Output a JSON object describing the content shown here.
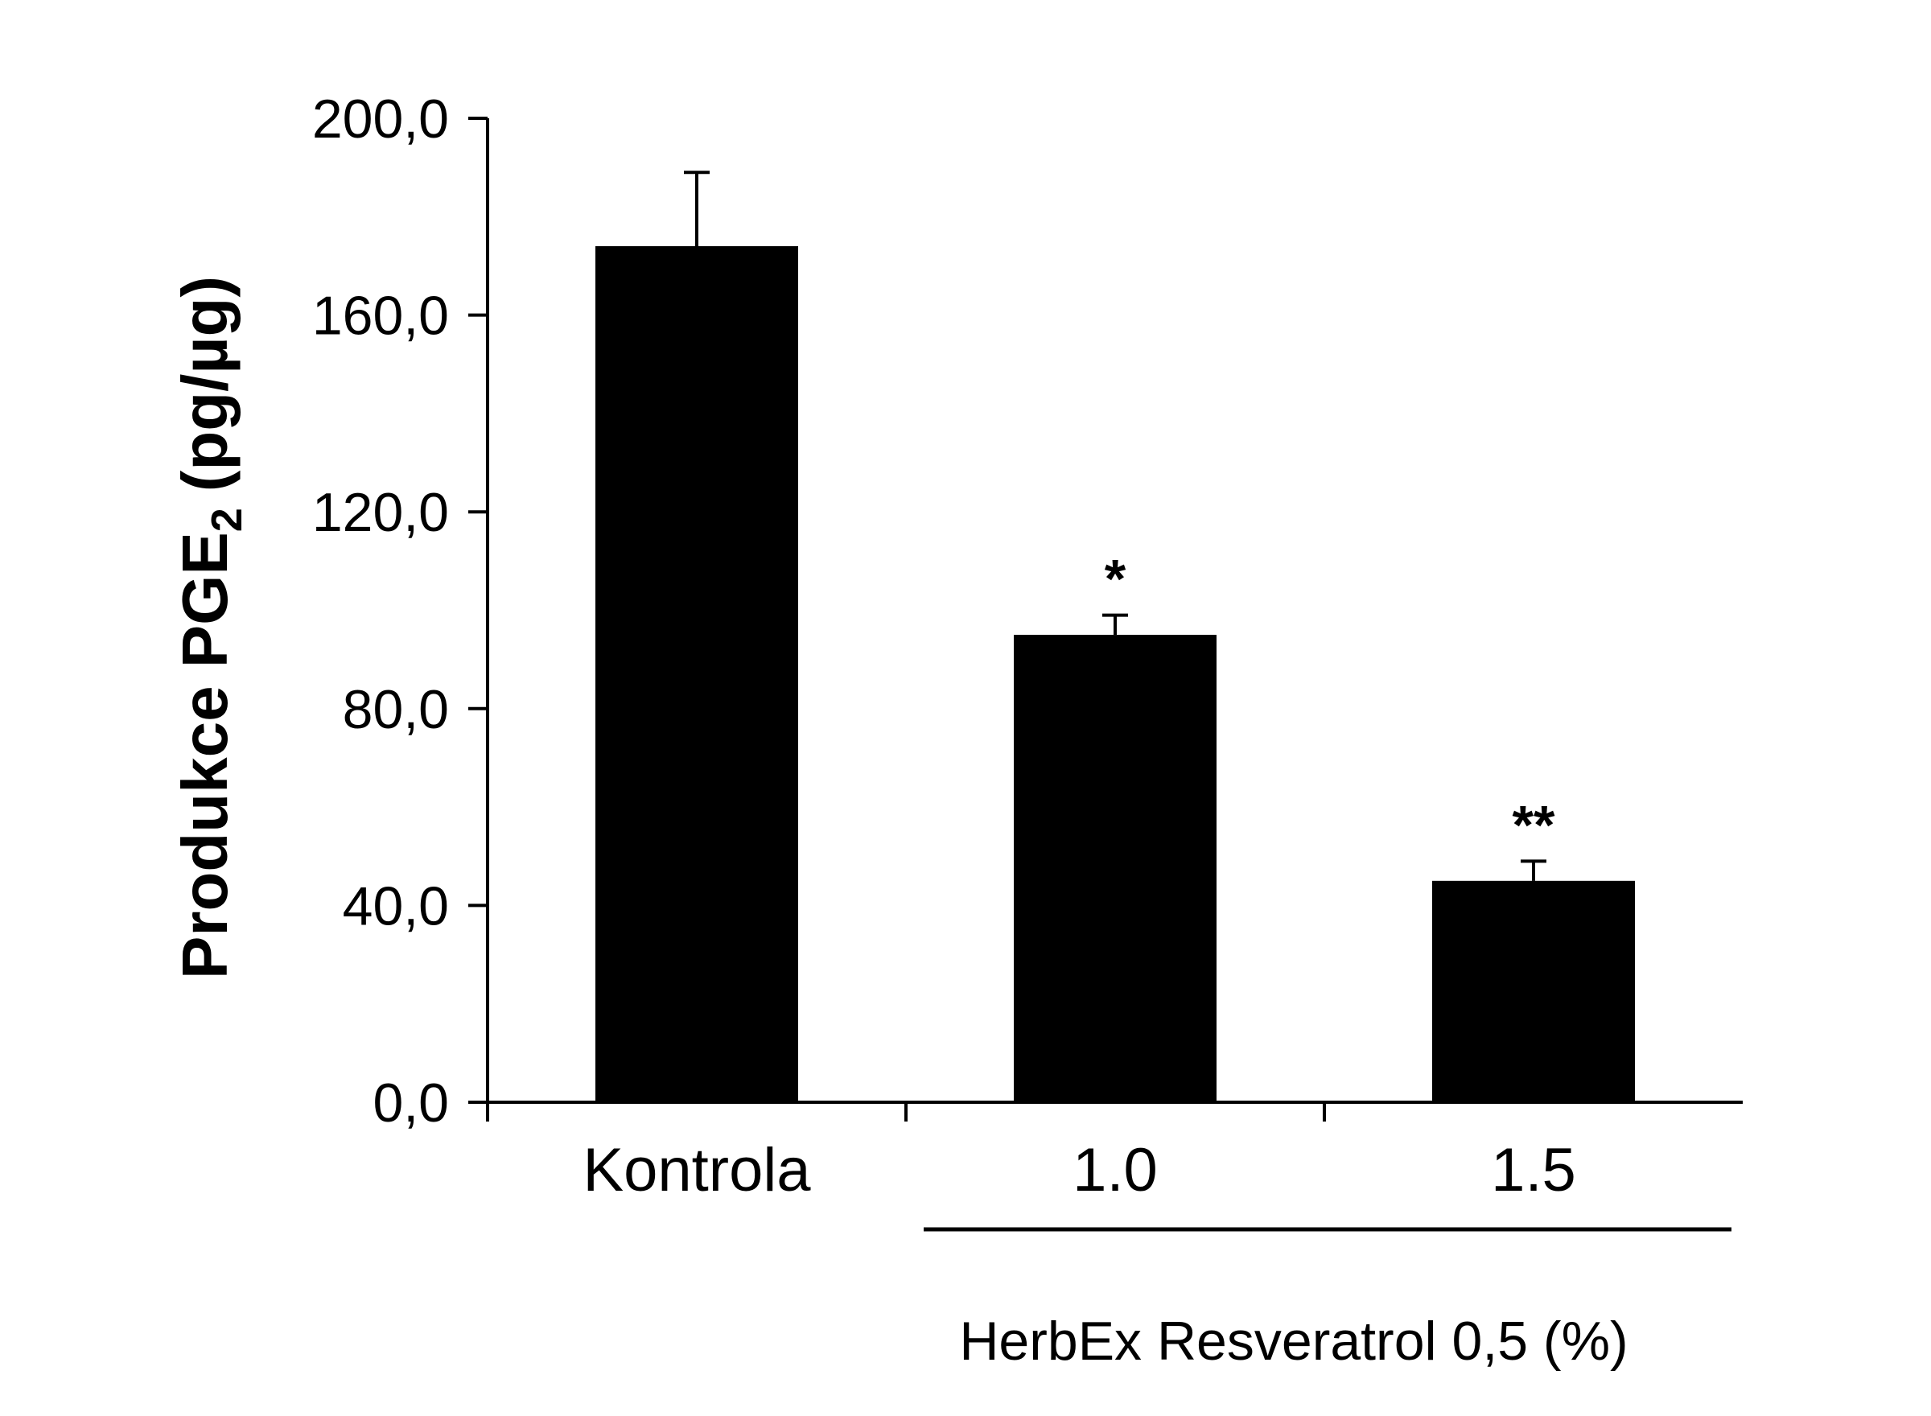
{
  "chart_data": {
    "type": "bar",
    "ylabel": {
      "main": "Produkce PGE",
      "subscript": "2",
      "unit": "(pg/µg)"
    },
    "categories": [
      "Kontrola",
      "1.0",
      "1.5"
    ],
    "values": [
      174,
      95,
      45
    ],
    "errors": [
      15,
      4,
      4
    ],
    "significance": [
      "",
      "*",
      "**"
    ],
    "yticks": [
      "0,0",
      "40,0",
      "80,0",
      "120,0",
      "160,0",
      "200,0"
    ],
    "ytick_values": [
      0,
      40,
      80,
      120,
      160,
      200
    ],
    "ylim": [
      0,
      200
    ],
    "group_label": "HerbEx Resveratrol 0,5 (%)",
    "bar_color": "#000000",
    "grid": false,
    "legend": "none"
  }
}
